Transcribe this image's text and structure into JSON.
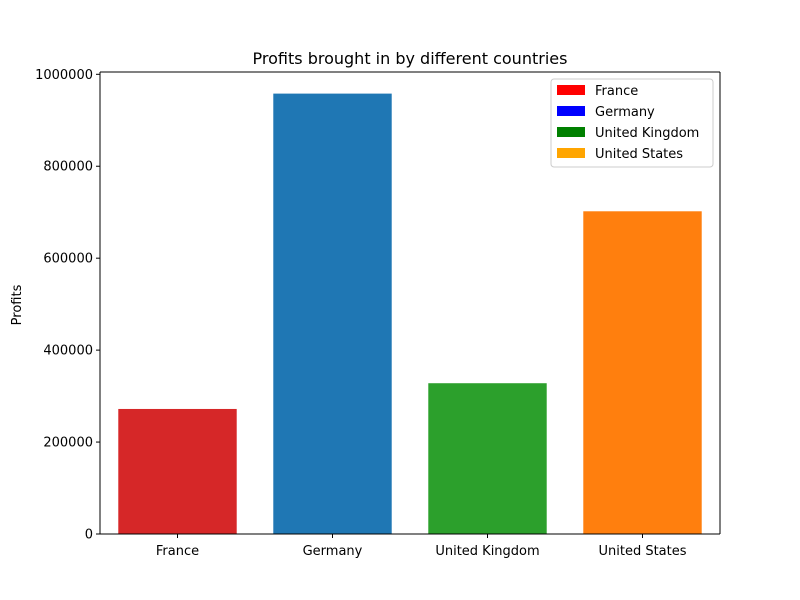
{
  "chart_data": {
    "type": "bar",
    "title": "Profits brought in by different countries",
    "xlabel": "",
    "ylabel": "Profits",
    "categories": [
      "France",
      "Germany",
      "United Kingdom",
      "United States"
    ],
    "values": [
      272000,
      958000,
      328000,
      702000
    ],
    "bar_colors": [
      "#d62728",
      "#1f77b4",
      "#2ca02c",
      "#ff7f0e"
    ],
    "ylim": [
      0,
      1005000
    ],
    "yticks": [
      0,
      200000,
      400000,
      600000,
      800000,
      1000000
    ],
    "ytick_labels": [
      "0",
      "200000",
      "400000",
      "600000",
      "800000",
      "1000000"
    ],
    "grid": false,
    "legend": {
      "placement": "top-right",
      "entries": [
        {
          "label": "France",
          "color": "#ff0000"
        },
        {
          "label": "Germany",
          "color": "#0000ff"
        },
        {
          "label": "United Kingdom",
          "color": "#008000"
        },
        {
          "label": "United States",
          "color": "#ffa500"
        }
      ]
    }
  }
}
